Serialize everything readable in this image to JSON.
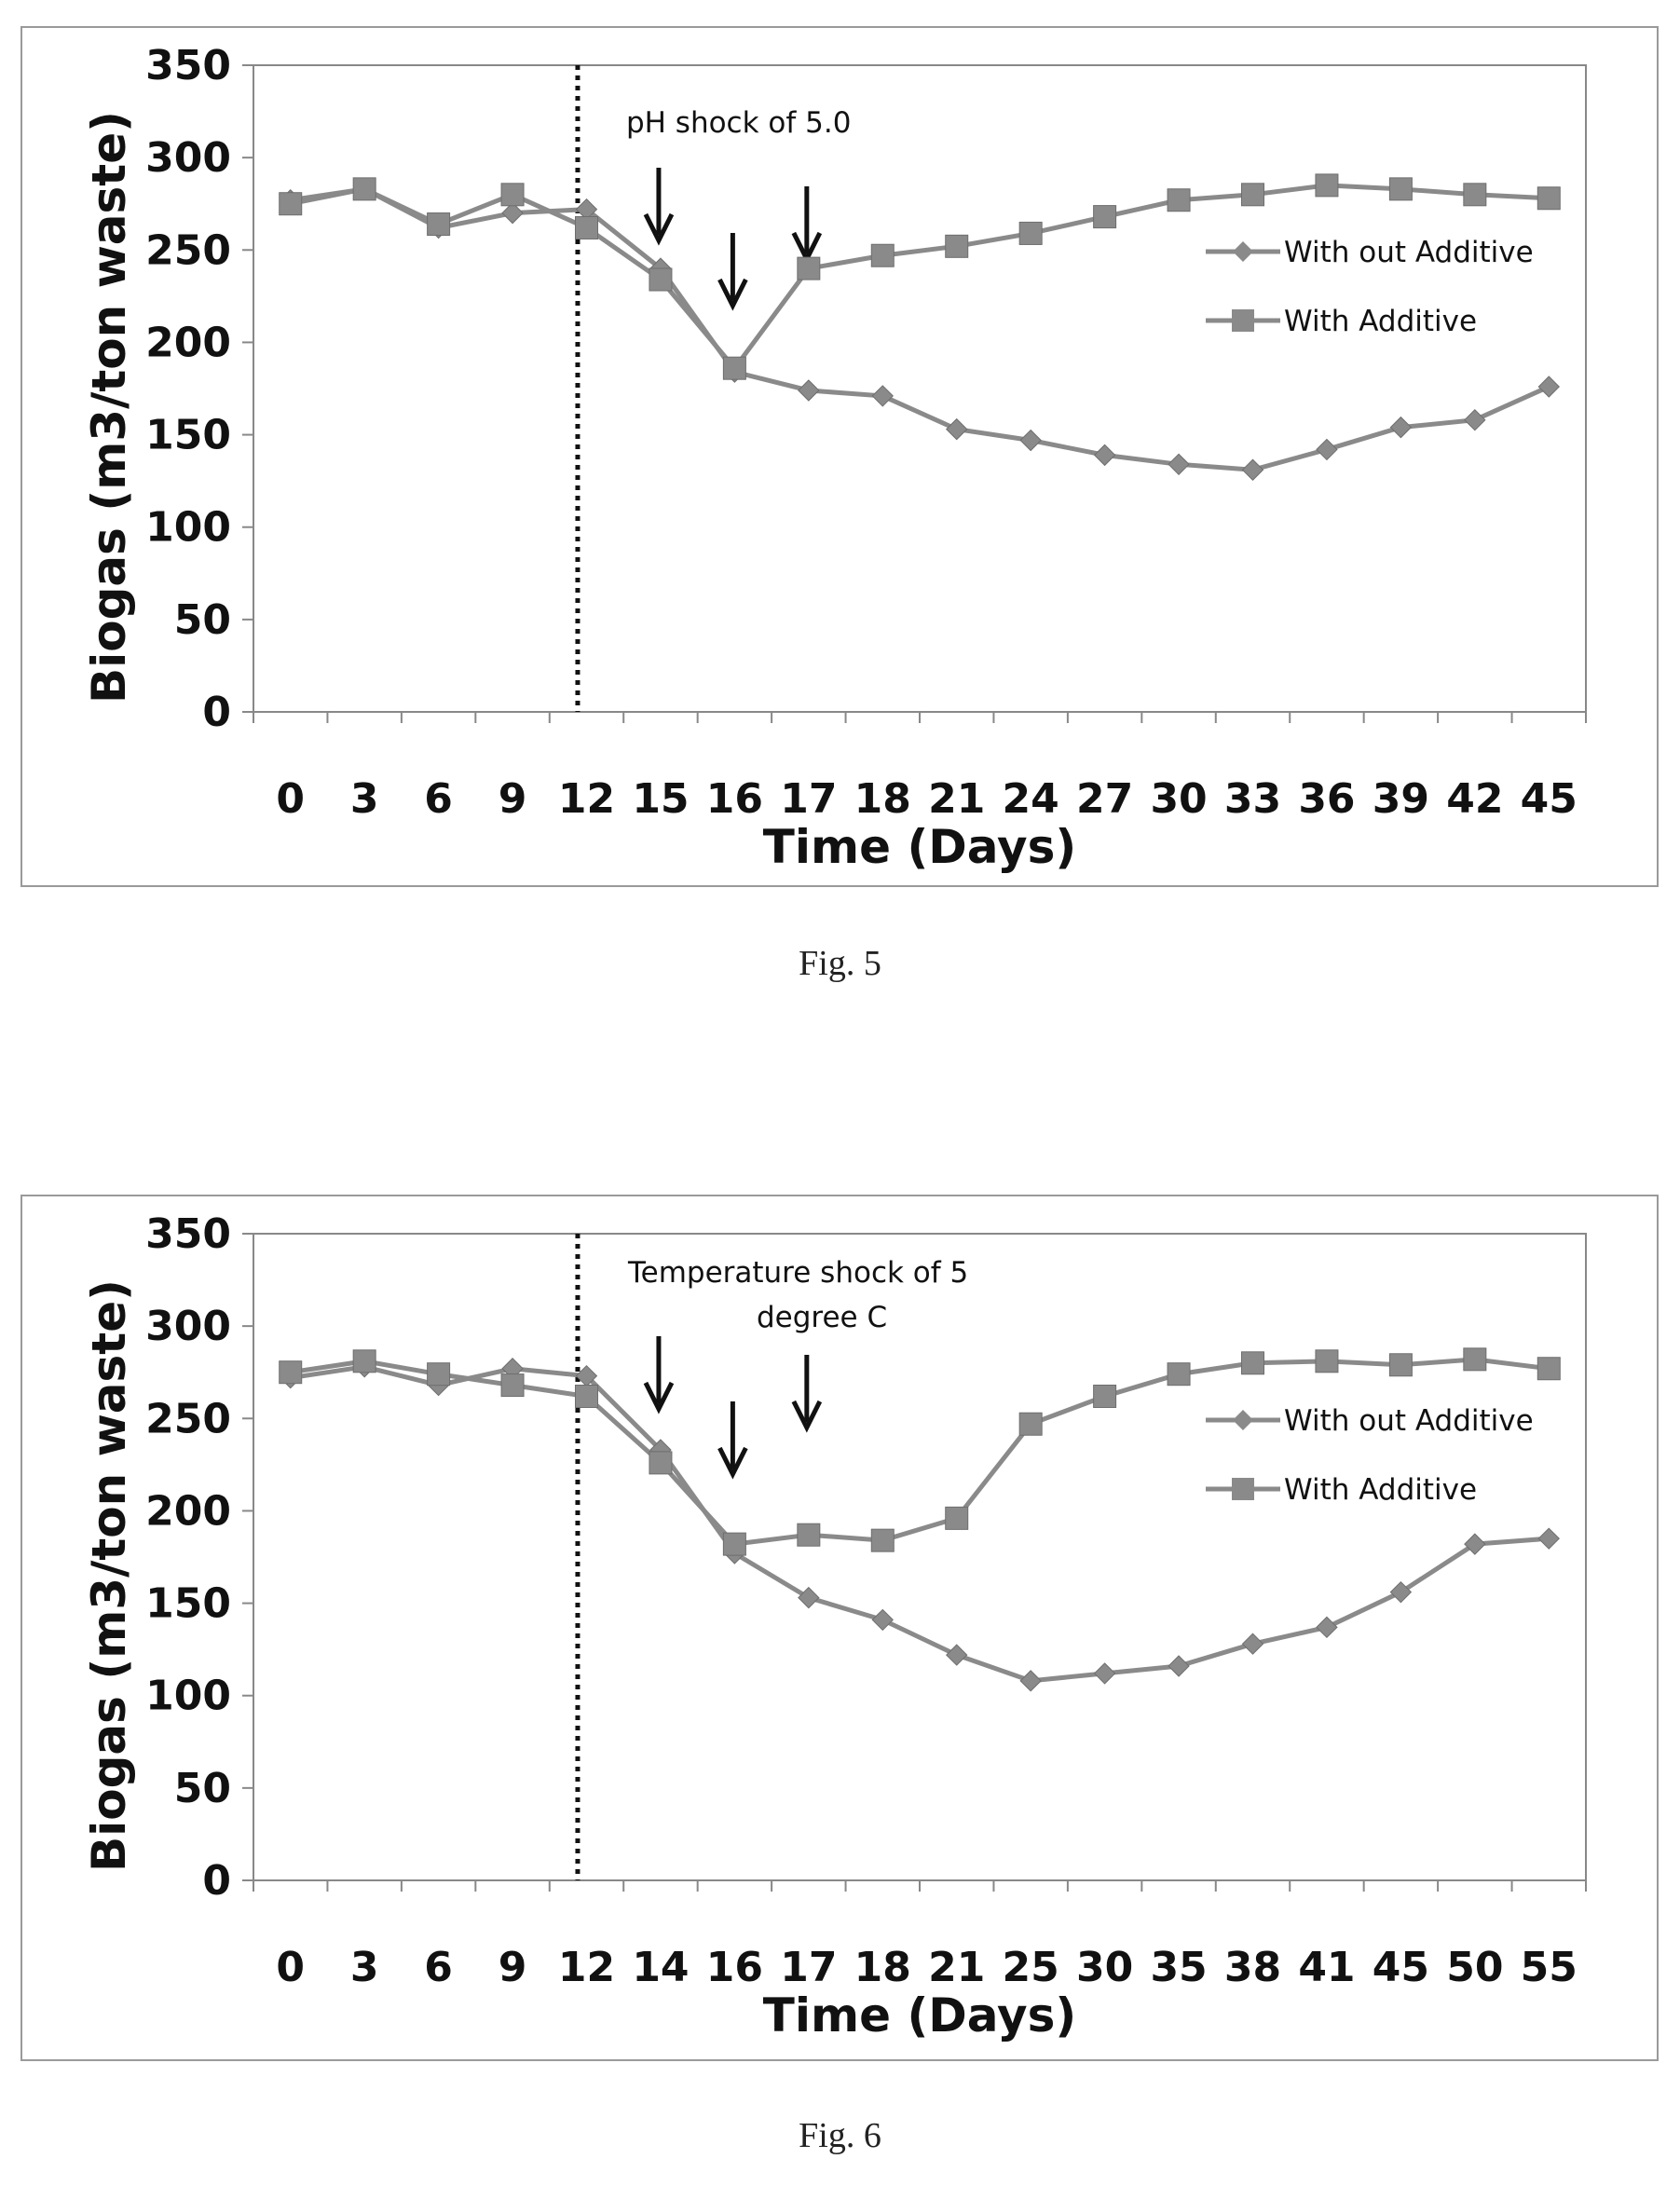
{
  "figures": [
    {
      "caption": "Fig. 5"
    },
    {
      "caption": "Fig. 6"
    }
  ],
  "chart_data": [
    {
      "type": "line",
      "title": "",
      "xlabel": "Time (Days)",
      "ylabel": "Biogas (m3/ton waste)",
      "categories": [
        "0",
        "3",
        "6",
        "9",
        "12",
        "15",
        "16",
        "17",
        "18",
        "21",
        "24",
        "27",
        "30",
        "33",
        "36",
        "39",
        "42",
        "45"
      ],
      "ylim": [
        0,
        350
      ],
      "yticks": [
        0,
        50,
        100,
        150,
        200,
        250,
        300,
        350
      ],
      "grid": false,
      "legend_position": "right",
      "annotation": "pH shock of 5.0",
      "shock_marker_after": "12",
      "arrows_at": [
        "15",
        "16",
        "17"
      ],
      "series": [
        {
          "name": "With out Additive",
          "marker": "diamond",
          "values": [
            277,
            283,
            262,
            270,
            272,
            240,
            184,
            174,
            171,
            153,
            147,
            139,
            134,
            131,
            142,
            154,
            158,
            176
          ]
        },
        {
          "name": "With Additive",
          "marker": "square",
          "values": [
            275,
            283,
            264,
            280,
            262,
            234,
            186,
            240,
            247,
            252,
            259,
            268,
            277,
            280,
            285,
            283,
            280,
            278
          ]
        }
      ],
      "colors": {
        "series": "#8a8a8a",
        "axis": "#888888",
        "text": "#111111"
      }
    },
    {
      "type": "line",
      "title": "",
      "xlabel": "Time (Days)",
      "ylabel": "Biogas (m3/ton waste)",
      "categories": [
        "0",
        "3",
        "6",
        "9",
        "12",
        "14",
        "16",
        "17",
        "18",
        "21",
        "25",
        "30",
        "35",
        "38",
        "41",
        "45",
        "50",
        "55"
      ],
      "ylim": [
        0,
        350
      ],
      "yticks": [
        0,
        50,
        100,
        150,
        200,
        250,
        300,
        350
      ],
      "grid": false,
      "legend_position": "right",
      "annotation": [
        "Temperature shock of 5",
        "degree C"
      ],
      "shock_marker_after": "12",
      "arrows_at": [
        "14",
        "16",
        "17"
      ],
      "series": [
        {
          "name": "With out Additive",
          "marker": "diamond",
          "values": [
            272,
            278,
            268,
            277,
            273,
            233,
            177,
            153,
            141,
            122,
            108,
            112,
            116,
            128,
            137,
            156,
            182,
            185
          ]
        },
        {
          "name": "With Additive",
          "marker": "square",
          "values": [
            275,
            281,
            274,
            268,
            262,
            226,
            182,
            187,
            184,
            196,
            247,
            262,
            274,
            280,
            281,
            279,
            282,
            277
          ]
        }
      ],
      "colors": {
        "series": "#8a8a8a",
        "axis": "#888888",
        "text": "#111111"
      }
    }
  ]
}
